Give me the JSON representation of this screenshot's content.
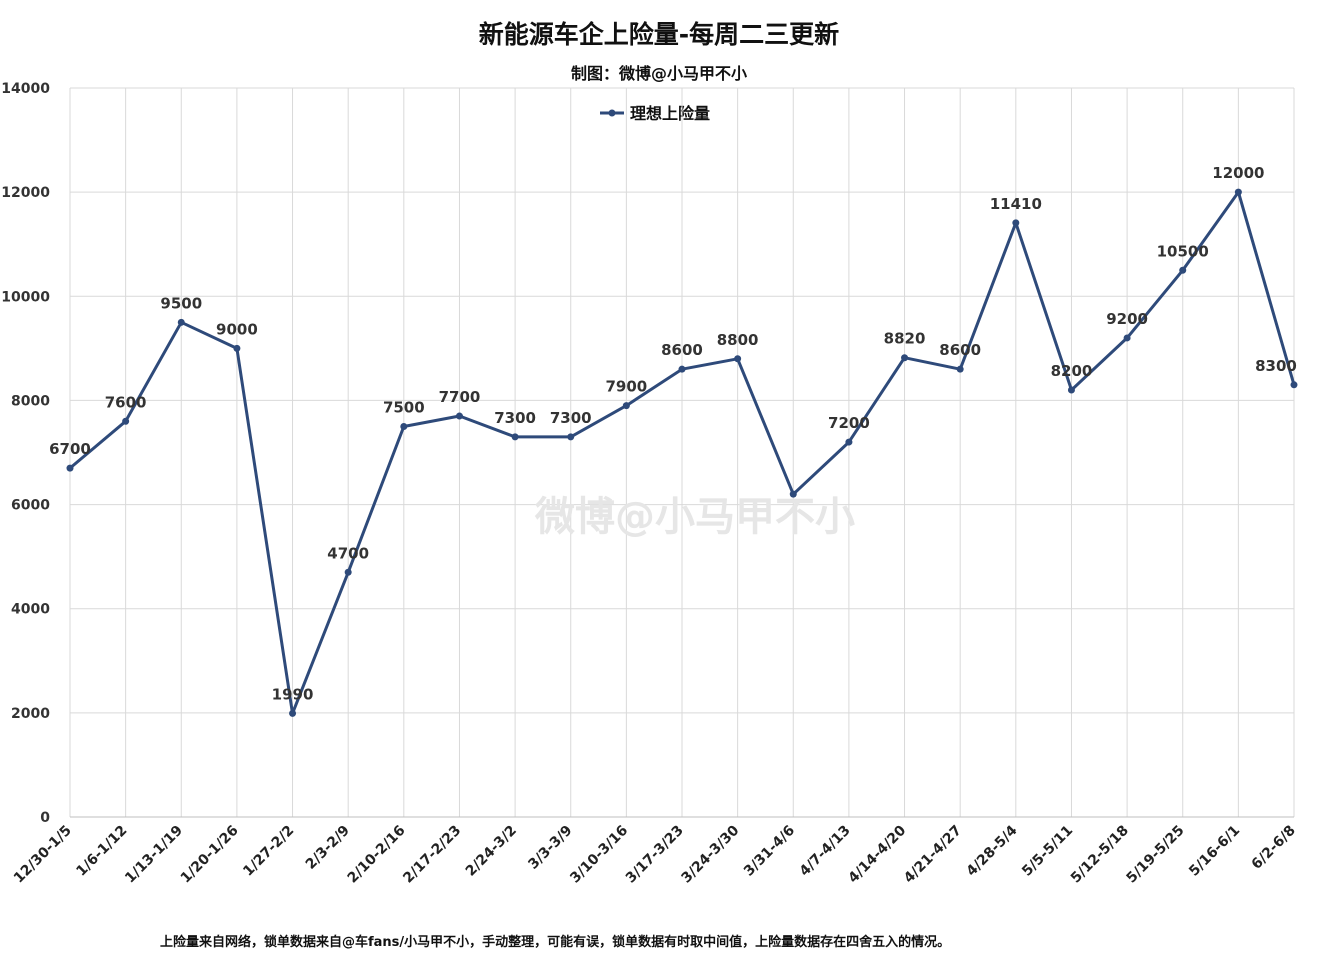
{
  "chart_data": {
    "type": "line",
    "title": "新能源车企上险量-每周二三更新",
    "subtitle": "制图：微博@小马甲不小",
    "xlabel": "",
    "ylabel": "",
    "ylim": [
      0,
      14000
    ],
    "yticks": [
      0,
      2000,
      4000,
      6000,
      8000,
      10000,
      12000,
      14000
    ],
    "grid": true,
    "legend_position": "top-center",
    "categories": [
      "12/30-1/5",
      "1/6-1/12",
      "1/13-1/19",
      "1/20-1/26",
      "1/27-2/2",
      "2/3-2/9",
      "2/10-2/16",
      "2/17-2/23",
      "2/24-3/2",
      "3/3-3/9",
      "3/10-3/16",
      "3/17-3/23",
      "3/24-3/30",
      "3/31-4/6",
      "4/7-4/13",
      "4/14-4/20",
      "4/21-4/27",
      "4/28-5/4",
      "5/5-5/11",
      "5/12-5/18",
      "5/19-5/25",
      "5/16-6/1",
      "6/2-6/8"
    ],
    "series": [
      {
        "name": "理想上险量",
        "color": "#2e4a7a",
        "values": [
          6700,
          7600,
          9500,
          9000,
          1990,
          4700,
          7500,
          7700,
          7300,
          7300,
          7900,
          8600,
          8800,
          6200,
          7200,
          8820,
          8600,
          11410,
          8200,
          9200,
          10500,
          12000,
          8300
        ],
        "labels": [
          "6700",
          "7600",
          "9500",
          "9000",
          "1990",
          "4700",
          "7500",
          "7700",
          "7300",
          "7300",
          "7900",
          "8600",
          "8800",
          "",
          "7200",
          "8820",
          "8600",
          "11410",
          "8200",
          "9200",
          "10500",
          "12000",
          "8300"
        ]
      }
    ],
    "footnote": "上险量来自网络，锁单数据来自@车fans/小马甲不小，手动整理，可能有误，锁单数据有时取中间值，上险量数据存在四舍五入的情况。",
    "watermark": "微博@小马甲不小"
  }
}
